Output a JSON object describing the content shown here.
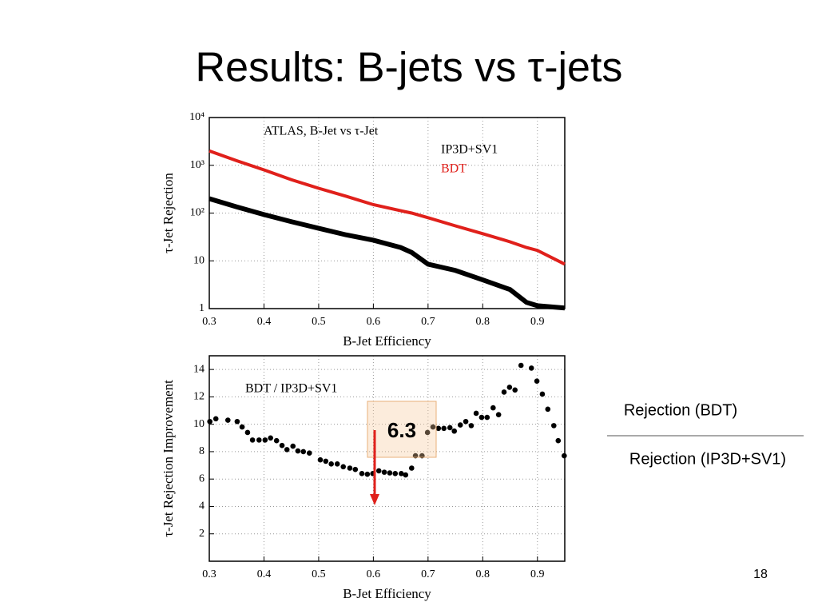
{
  "slide": {
    "title": "Results: B-jets vs τ-jets",
    "ratio_numerator": "Rejection (BDT)",
    "ratio_denominator": "Rejection (IP3D+SV1)",
    "page_number": "18"
  },
  "chart_data": [
    {
      "type": "line",
      "annotation": "ATLAS, B-Jet vs τ-Jet",
      "x_label": "B-Jet Efficiency",
      "y_label": "τ-Jet Rejection",
      "x": [
        0.3,
        0.35,
        0.4,
        0.45,
        0.5,
        0.55,
        0.6,
        0.65,
        0.67,
        0.7,
        0.75,
        0.8,
        0.85,
        0.88,
        0.9,
        0.95
      ],
      "series": [
        {
          "name": "IP3D+SV1",
          "color": "#000000",
          "values": [
            200,
            135,
            93,
            66,
            48,
            35,
            27,
            19,
            15,
            8.5,
            6.3,
            4,
            2.5,
            1.35,
            1.15,
            1.03
          ]
        },
        {
          "name": "BDT",
          "color": "#e0201b",
          "values": [
            2000,
            1250,
            800,
            500,
            330,
            225,
            150,
            112,
            100,
            80,
            54,
            37,
            25,
            19,
            16.5,
            8.5
          ]
        }
      ],
      "xlim": [
        0.3,
        0.95
      ],
      "xticks": [
        0.3,
        0.4,
        0.5,
        0.6,
        0.7,
        0.8,
        0.9
      ],
      "ylim": [
        1,
        10000
      ],
      "yscale": "log",
      "yticks": [
        1,
        10,
        {
          "value": 100,
          "label": "10²"
        },
        {
          "value": 1000,
          "label": "10³"
        },
        {
          "value": 10000,
          "label": "10⁴"
        }
      ],
      "grid": true,
      "legend": "upper right"
    },
    {
      "type": "scatter",
      "annotation": "BDT / IP3D+SV1",
      "x_label": "B-Jet Efficiency",
      "y_label": "τ-Jet Rejection Improvement",
      "x": [
        0.301,
        0.312,
        0.334,
        0.351,
        0.36,
        0.37,
        0.379,
        0.391,
        0.402,
        0.412,
        0.423,
        0.433,
        0.442,
        0.453,
        0.462,
        0.472,
        0.483,
        0.503,
        0.513,
        0.523,
        0.534,
        0.545,
        0.557,
        0.567,
        0.579,
        0.589,
        0.599,
        0.61,
        0.62,
        0.63,
        0.64,
        0.651,
        0.659,
        0.67,
        0.677,
        0.689,
        0.699,
        0.709,
        0.719,
        0.729,
        0.74,
        0.748,
        0.759,
        0.769,
        0.779,
        0.788,
        0.798,
        0.808,
        0.819,
        0.829,
        0.839,
        0.849,
        0.859,
        0.87,
        0.889,
        0.899,
        0.909,
        0.919,
        0.93,
        0.938,
        0.949
      ],
      "values": [
        10.2,
        10.4,
        10.3,
        10.2,
        9.8,
        9.4,
        8.85,
        8.85,
        8.85,
        9.0,
        8.8,
        8.45,
        8.15,
        8.4,
        8.05,
        8.0,
        7.9,
        7.4,
        7.3,
        7.1,
        7.1,
        6.9,
        6.8,
        6.7,
        6.4,
        6.35,
        6.4,
        6.6,
        6.5,
        6.45,
        6.4,
        6.4,
        6.3,
        6.8,
        7.7,
        7.7,
        9.4,
        9.8,
        9.7,
        9.7,
        9.75,
        9.5,
        9.95,
        10.2,
        9.9,
        10.8,
        10.5,
        10.5,
        11.2,
        10.7,
        12.35,
        12.7,
        12.5,
        14.3,
        14.1,
        13.15,
        12.2,
        11.1,
        9.9,
        8.8,
        7.7
      ],
      "color": "#000000",
      "xlim": [
        0.3,
        0.95
      ],
      "xticks": [
        0.3,
        0.4,
        0.5,
        0.6,
        0.7,
        0.8,
        0.9
      ],
      "ylim": [
        0,
        15
      ],
      "yticks": [
        2,
        4,
        6,
        8,
        10,
        12,
        14
      ],
      "grid": true,
      "highlight": "6.3"
    }
  ]
}
